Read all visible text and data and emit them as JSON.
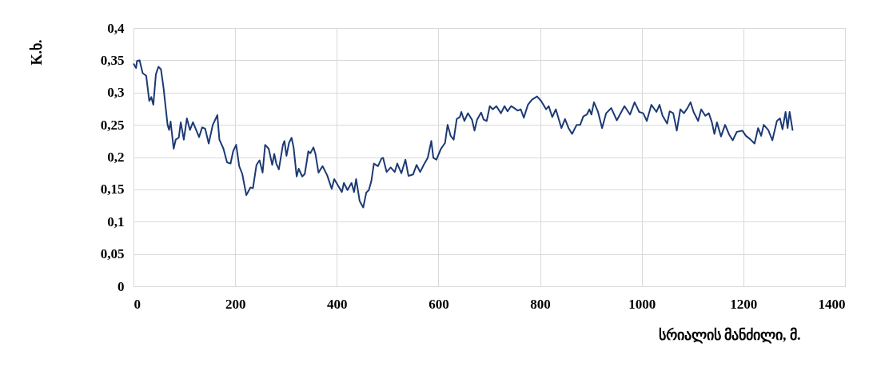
{
  "chart_data": {
    "type": "line",
    "xlabel": "სრიალის მანძილი, მ.",
    "ylabel": "K.ხ.",
    "xlim": [
      0,
      1400
    ],
    "xticks": [
      0,
      200,
      400,
      600,
      800,
      1000,
      1200,
      1400
    ],
    "ylim": [
      0,
      0.4
    ],
    "yticks": [
      {
        "value": 0,
        "label": "0"
      },
      {
        "value": 0.05,
        "label": "0,05"
      },
      {
        "value": 0.1,
        "label": "0,1"
      },
      {
        "value": 0.15,
        "label": "0,15"
      },
      {
        "value": 0.2,
        "label": "0,2"
      },
      {
        "value": 0.25,
        "label": "0,25"
      },
      {
        "value": 0.3,
        "label": "0,3"
      },
      {
        "value": 0.35,
        "label": "0,35"
      },
      {
        "value": 0.4,
        "label": "0,4"
      }
    ],
    "grid": true,
    "marker": "none",
    "line_style": "solid",
    "series": [
      {
        "color": "#1c3a74",
        "x": [
          0,
          5,
          7,
          12,
          18,
          25,
          31,
          35,
          39,
          44,
          49,
          54,
          59,
          67,
          70,
          73,
          79,
          83,
          89,
          93,
          99,
          105,
          111,
          117,
          129,
          135,
          141,
          148,
          156,
          165,
          169,
          177,
          184,
          191,
          196,
          202,
          208,
          214,
          222,
          230,
          235,
          242,
          248,
          254,
          259,
          266,
          273,
          277,
          281,
          286,
          294,
          297,
          301,
          306,
          311,
          315,
          321,
          325,
          332,
          337,
          344,
          348,
          354,
          358,
          364,
          372,
          381,
          390,
          395,
          403,
          410,
          414,
          421,
          429,
          434,
          438,
          445,
          452,
          458,
          463,
          468,
          473,
          481,
          488,
          491,
          498,
          506,
          514,
          519,
          527,
          535,
          541,
          550,
          557,
          564,
          571,
          579,
          586,
          590,
          596,
          605,
          613,
          618,
          624,
          630,
          636,
          642,
          645,
          651,
          658,
          666,
          671,
          676,
          684,
          689,
          695,
          701,
          707,
          714,
          723,
          730,
          736,
          743,
          749,
          756,
          762,
          768,
          776,
          784,
          794,
          802,
          812,
          817,
          824,
          831,
          842,
          849,
          856,
          863,
          872,
          879,
          885,
          892,
          897,
          901,
          906,
          914,
          922,
          930,
          940,
          951,
          966,
          977,
          986,
          995,
          1003,
          1010,
          1019,
          1029,
          1035,
          1041,
          1050,
          1055,
          1062,
          1069,
          1076,
          1083,
          1090,
          1096,
          1102,
          1111,
          1117,
          1125,
          1132,
          1138,
          1143,
          1148,
          1156,
          1164,
          1172,
          1179,
          1187,
          1198,
          1205,
          1213,
          1222,
          1229,
          1235,
          1240,
          1249,
          1257,
          1266,
          1272,
          1277,
          1283,
          1287,
          1291,
          1297
        ],
        "values": [
          0.345,
          0.338,
          0.349,
          0.35,
          0.33,
          0.326,
          0.287,
          0.293,
          0.281,
          0.328,
          0.34,
          0.336,
          0.308,
          0.25,
          0.242,
          0.255,
          0.213,
          0.227,
          0.23,
          0.254,
          0.227,
          0.26,
          0.242,
          0.254,
          0.231,
          0.246,
          0.244,
          0.221,
          0.25,
          0.265,
          0.227,
          0.213,
          0.192,
          0.19,
          0.209,
          0.219,
          0.186,
          0.174,
          0.141,
          0.153,
          0.152,
          0.188,
          0.195,
          0.176,
          0.219,
          0.213,
          0.188,
          0.205,
          0.19,
          0.181,
          0.219,
          0.225,
          0.202,
          0.222,
          0.23,
          0.215,
          0.17,
          0.182,
          0.17,
          0.174,
          0.209,
          0.206,
          0.215,
          0.205,
          0.176,
          0.186,
          0.172,
          0.151,
          0.166,
          0.155,
          0.146,
          0.16,
          0.149,
          0.16,
          0.146,
          0.166,
          0.132,
          0.122,
          0.145,
          0.149,
          0.163,
          0.19,
          0.186,
          0.198,
          0.199,
          0.177,
          0.184,
          0.177,
          0.19,
          0.175,
          0.196,
          0.171,
          0.173,
          0.188,
          0.177,
          0.188,
          0.199,
          0.225,
          0.199,
          0.196,
          0.213,
          0.222,
          0.25,
          0.233,
          0.227,
          0.259,
          0.262,
          0.27,
          0.256,
          0.268,
          0.258,
          0.241,
          0.258,
          0.269,
          0.258,
          0.256,
          0.279,
          0.274,
          0.279,
          0.268,
          0.279,
          0.271,
          0.279,
          0.276,
          0.272,
          0.274,
          0.261,
          0.281,
          0.289,
          0.294,
          0.287,
          0.274,
          0.279,
          0.262,
          0.274,
          0.245,
          0.259,
          0.245,
          0.236,
          0.25,
          0.25,
          0.263,
          0.266,
          0.274,
          0.266,
          0.285,
          0.27,
          0.245,
          0.268,
          0.276,
          0.257,
          0.279,
          0.266,
          0.285,
          0.27,
          0.268,
          0.256,
          0.281,
          0.27,
          0.281,
          0.264,
          0.252,
          0.271,
          0.268,
          0.241,
          0.274,
          0.268,
          0.276,
          0.285,
          0.27,
          0.256,
          0.274,
          0.264,
          0.268,
          0.254,
          0.236,
          0.254,
          0.232,
          0.25,
          0.235,
          0.226,
          0.239,
          0.241,
          0.233,
          0.228,
          0.221,
          0.245,
          0.233,
          0.25,
          0.242,
          0.226,
          0.256,
          0.26,
          0.243,
          0.27,
          0.245,
          0.27,
          0.241
        ]
      }
    ]
  }
}
